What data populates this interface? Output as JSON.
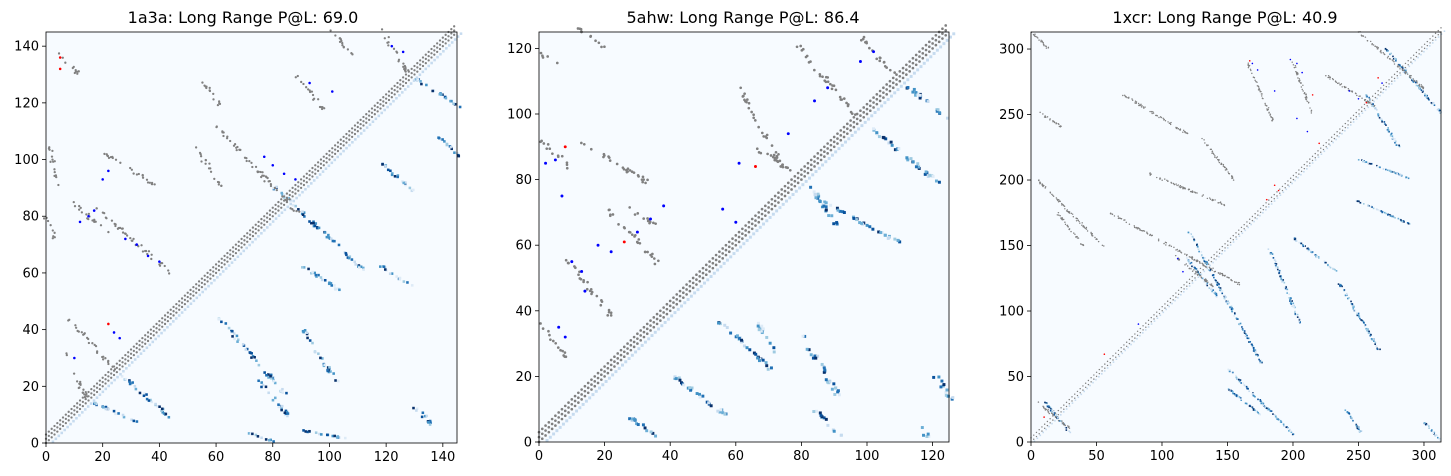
{
  "figure": {
    "panels": [
      {
        "title": "1a3a: Long Range P@L: 69.0"
      },
      {
        "title": "5ahw: Long Range P@L: 86.4"
      },
      {
        "title": "1xcr: Long Range P@L: 40.9"
      }
    ]
  },
  "chart_data": [
    {
      "type": "heatmap",
      "title": "1a3a: Long Range P@L: 69.0",
      "xlim": [
        0,
        145
      ],
      "ylim": [
        0,
        145
      ],
      "xticks": [
        0,
        20,
        40,
        60,
        80,
        100,
        120,
        140
      ],
      "yticks": [
        0,
        20,
        40,
        60,
        80,
        100,
        120,
        140
      ],
      "grid": false,
      "lower_triangle": "predicted contact probability (blue colormap)",
      "upper_triangle": "true contacts (gray) with top predictions marked blue (correct) and red (incorrect)",
      "colors": {
        "true_contact": "#808080",
        "correct": "#0000ff",
        "incorrect": "#ff0000",
        "prob_low": "#f7fbff",
        "prob_high": "#08306b"
      },
      "true_contact_bands": [
        {
          "i": [
            5,
            12
          ],
          "j": [
            130,
            137
          ]
        },
        {
          "i": [
            1,
            4
          ],
          "j": [
            90,
            106
          ]
        },
        {
          "i": [
            0,
            3
          ],
          "j": [
            72,
            80
          ]
        },
        {
          "i": [
            9,
            22
          ],
          "j": [
            74,
            85
          ]
        },
        {
          "i": [
            17,
            44
          ],
          "j": [
            60,
            84
          ]
        },
        {
          "i": [
            21,
            40
          ],
          "j": [
            90,
            102
          ]
        },
        {
          "i": [
            8,
            24
          ],
          "j": [
            26,
            44
          ]
        },
        {
          "i": [
            7,
            14
          ],
          "j": [
            16,
            31
          ]
        },
        {
          "i": [
            53,
            62
          ],
          "j": [
            90,
            104
          ]
        },
        {
          "i": [
            55,
            62
          ],
          "j": [
            118,
            128
          ]
        },
        {
          "i": [
            60,
            90
          ],
          "j": [
            80,
            112
          ]
        },
        {
          "i": [
            88,
            98
          ],
          "j": [
            118,
            130
          ]
        },
        {
          "i": [
            100,
            108
          ],
          "j": [
            137,
            146
          ]
        },
        {
          "i": [
            118,
            128
          ],
          "j": [
            130,
            146
          ]
        }
      ],
      "predicted_contacts": [
        {
          "i": 5,
          "j": 136,
          "correct": false
        },
        {
          "i": 5,
          "j": 132,
          "correct": false
        },
        {
          "i": 12,
          "j": 78,
          "correct": true
        },
        {
          "i": 15,
          "j": 80,
          "correct": true
        },
        {
          "i": 17,
          "j": 82,
          "correct": true
        },
        {
          "i": 20,
          "j": 93,
          "correct": true
        },
        {
          "i": 22,
          "j": 96,
          "correct": true
        },
        {
          "i": 22,
          "j": 42,
          "correct": false
        },
        {
          "i": 24,
          "j": 39,
          "correct": true
        },
        {
          "i": 26,
          "j": 37,
          "correct": true
        },
        {
          "i": 28,
          "j": 72,
          "correct": true
        },
        {
          "i": 32,
          "j": 70,
          "correct": true
        },
        {
          "i": 36,
          "j": 66,
          "correct": true
        },
        {
          "i": 40,
          "j": 64,
          "correct": true
        },
        {
          "i": 10,
          "j": 30,
          "correct": true
        },
        {
          "i": 77,
          "j": 101,
          "correct": true
        },
        {
          "i": 80,
          "j": 98,
          "correct": true
        },
        {
          "i": 84,
          "j": 95,
          "correct": true
        },
        {
          "i": 88,
          "j": 93,
          "correct": true
        },
        {
          "i": 93,
          "j": 127,
          "correct": true
        },
        {
          "i": 101,
          "j": 124,
          "correct": true
        },
        {
          "i": 122,
          "j": 140,
          "correct": true
        },
        {
          "i": 126,
          "j": 138,
          "correct": true
        }
      ]
    },
    {
      "type": "heatmap",
      "title": "5ahw: Long Range P@L: 86.4",
      "xlim": [
        0,
        125
      ],
      "ylim": [
        0,
        125
      ],
      "xticks": [
        0,
        20,
        40,
        60,
        80,
        100,
        120
      ],
      "yticks": [
        0,
        20,
        40,
        60,
        80,
        100,
        120
      ],
      "grid": false,
      "lower_triangle": "predicted contact probability (blue colormap)",
      "upper_triangle": "true contacts (gray) with top predictions marked blue (correct) and red (incorrect)",
      "colors": {
        "true_contact": "#808080",
        "correct": "#0000ff",
        "incorrect": "#ff0000",
        "prob_low": "#f7fbff",
        "prob_high": "#08306b"
      },
      "true_contact_bands": [
        {
          "i": [
            1,
            9
          ],
          "j": [
            84,
            92
          ]
        },
        {
          "i": [
            1,
            5
          ],
          "j": [
            116,
            118
          ]
        },
        {
          "i": [
            12,
            20
          ],
          "j": [
            120,
            126
          ]
        },
        {
          "i": [
            1,
            8
          ],
          "j": [
            26,
            36
          ]
        },
        {
          "i": [
            8,
            22
          ],
          "j": [
            38,
            56
          ]
        },
        {
          "i": [
            20,
            36
          ],
          "j": [
            55,
            72
          ]
        },
        {
          "i": [
            12,
            33
          ],
          "j": [
            79,
            92
          ]
        },
        {
          "i": [
            27,
            36
          ],
          "j": [
            66,
            72
          ]
        },
        {
          "i": [
            60,
            74
          ],
          "j": [
            84,
            110
          ]
        },
        {
          "i": [
            66,
            78
          ],
          "j": [
            82,
            90
          ]
        },
        {
          "i": [
            78,
            96
          ],
          "j": [
            100,
            122
          ]
        },
        {
          "i": [
            98,
            108
          ],
          "j": [
            112,
            124
          ]
        }
      ],
      "predicted_contacts": [
        {
          "i": 2,
          "j": 85,
          "correct": true
        },
        {
          "i": 5,
          "j": 86,
          "correct": true
        },
        {
          "i": 8,
          "j": 90,
          "correct": false
        },
        {
          "i": 6,
          "j": 35,
          "correct": true
        },
        {
          "i": 8,
          "j": 32,
          "correct": true
        },
        {
          "i": 7,
          "j": 75,
          "correct": true
        },
        {
          "i": 10,
          "j": 55,
          "correct": true
        },
        {
          "i": 13,
          "j": 52,
          "correct": true
        },
        {
          "i": 14,
          "j": 46,
          "correct": true
        },
        {
          "i": 18,
          "j": 60,
          "correct": true
        },
        {
          "i": 22,
          "j": 58,
          "correct": true
        },
        {
          "i": 26,
          "j": 61,
          "correct": false
        },
        {
          "i": 30,
          "j": 64,
          "correct": true
        },
        {
          "i": 34,
          "j": 68,
          "correct": true
        },
        {
          "i": 38,
          "j": 72,
          "correct": true
        },
        {
          "i": 56,
          "j": 71,
          "correct": true
        },
        {
          "i": 60,
          "j": 67,
          "correct": true
        },
        {
          "i": 61,
          "j": 85,
          "correct": true
        },
        {
          "i": 66,
          "j": 84,
          "correct": false
        },
        {
          "i": 76,
          "j": 94,
          "correct": true
        },
        {
          "i": 84,
          "j": 104,
          "correct": true
        },
        {
          "i": 88,
          "j": 108,
          "correct": true
        },
        {
          "i": 98,
          "j": 116,
          "correct": true
        },
        {
          "i": 102,
          "j": 119,
          "correct": true
        }
      ]
    },
    {
      "type": "heatmap",
      "title": "1xcr: Long Range P@L: 40.9",
      "xlim": [
        0,
        313
      ],
      "ylim": [
        0,
        313
      ],
      "xticks": [
        0,
        50,
        100,
        150,
        200,
        250,
        300
      ],
      "yticks": [
        0,
        50,
        100,
        150,
        200,
        250,
        300
      ],
      "grid": false,
      "lower_triangle": "predicted contact probability (blue colormap)",
      "upper_triangle": "true contacts (gray) with top predictions marked blue (correct) and red (incorrect)",
      "colors": {
        "true_contact": "#808080",
        "correct": "#0000ff",
        "incorrect": "#ff0000",
        "prob_low": "#f7fbff",
        "prob_high": "#08306b"
      },
      "true_contact_bands": [
        {
          "i": [
            0,
            14
          ],
          "j": [
            300,
            313
          ]
        },
        {
          "i": [
            6,
            24
          ],
          "j": [
            240,
            252
          ]
        },
        {
          "i": [
            5,
            55
          ],
          "j": [
            150,
            200
          ]
        },
        {
          "i": [
            20,
            40
          ],
          "j": [
            150,
            175
          ]
        },
        {
          "i": [
            60,
            160
          ],
          "j": [
            120,
            175
          ]
        },
        {
          "i": [
            110,
            140
          ],
          "j": [
            118,
            142
          ]
        },
        {
          "i": [
            130,
            155
          ],
          "j": [
            200,
            232
          ]
        },
        {
          "i": [
            90,
            150
          ],
          "j": [
            180,
            205
          ]
        },
        {
          "i": [
            165,
            185
          ],
          "j": [
            245,
            290
          ]
        },
        {
          "i": [
            200,
            215
          ],
          "j": [
            250,
            290
          ]
        },
        {
          "i": [
            225,
            265
          ],
          "j": [
            255,
            280
          ]
        },
        {
          "i": [
            250,
            300
          ],
          "j": [
            270,
            313
          ]
        },
        {
          "i": [
            70,
            120
          ],
          "j": [
            235,
            265
          ]
        },
        {
          "i": [
            5,
            30
          ],
          "j": [
            10,
            30
          ]
        }
      ],
      "predicted_contacts": [
        {
          "i": 167,
          "j": 291,
          "correct": false
        },
        {
          "i": 169,
          "j": 289,
          "correct": true
        },
        {
          "i": 173,
          "j": 284,
          "correct": true
        },
        {
          "i": 186,
          "j": 268,
          "correct": true
        },
        {
          "i": 198,
          "j": 292,
          "correct": true
        },
        {
          "i": 203,
          "j": 289,
          "correct": true
        },
        {
          "i": 207,
          "j": 282,
          "correct": true
        },
        {
          "i": 203,
          "j": 247,
          "correct": true
        },
        {
          "i": 211,
          "j": 237,
          "correct": true
        },
        {
          "i": 215,
          "j": 265,
          "correct": false
        },
        {
          "i": 220,
          "j": 228,
          "correct": false
        },
        {
          "i": 243,
          "j": 268,
          "correct": true
        },
        {
          "i": 250,
          "j": 262,
          "correct": true
        },
        {
          "i": 256,
          "j": 259,
          "correct": false
        },
        {
          "i": 265,
          "j": 278,
          "correct": false
        },
        {
          "i": 268,
          "j": 274,
          "correct": true
        },
        {
          "i": 189,
          "j": 192,
          "correct": false
        },
        {
          "i": 180,
          "j": 185,
          "correct": false
        },
        {
          "i": 112,
          "j": 140,
          "correct": true
        },
        {
          "i": 116,
          "j": 130,
          "correct": true
        },
        {
          "i": 82,
          "j": 90,
          "correct": true
        },
        {
          "i": 56,
          "j": 67,
          "correct": false
        },
        {
          "i": 10,
          "j": 19,
          "correct": false
        },
        {
          "i": 186,
          "j": 196,
          "correct": false
        }
      ]
    }
  ]
}
